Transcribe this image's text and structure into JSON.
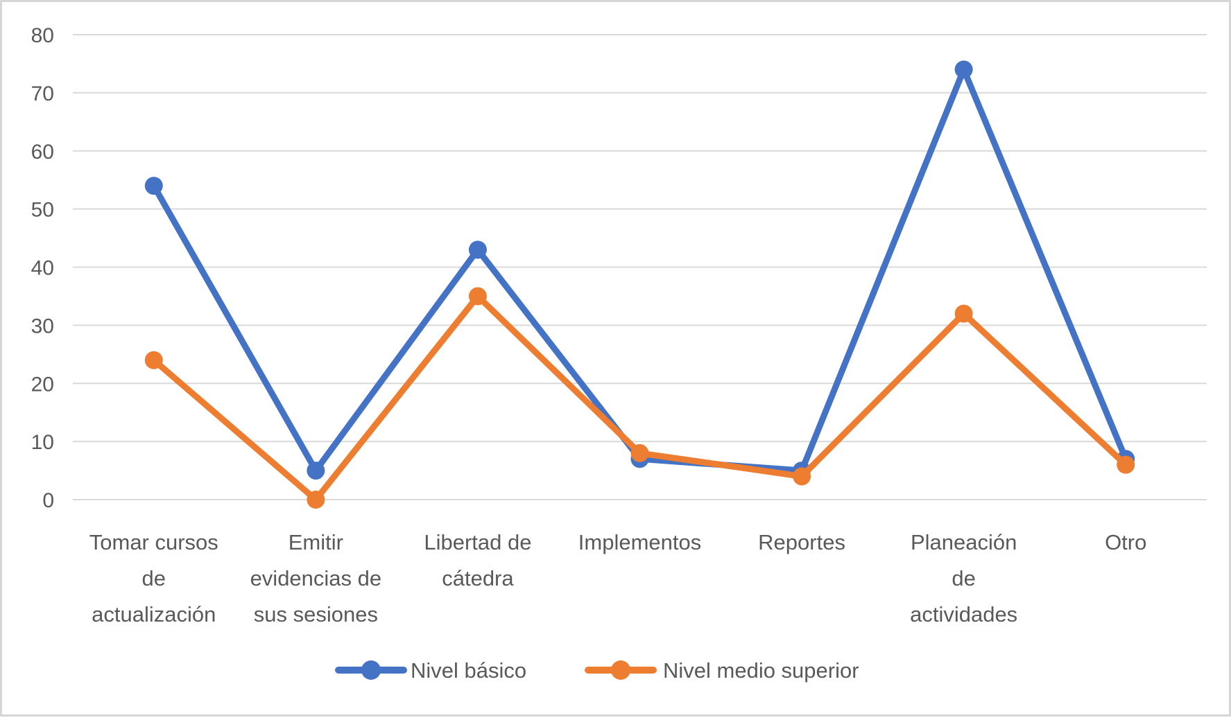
{
  "chart_data": {
    "type": "line",
    "title": "",
    "xlabel": "",
    "ylabel": "",
    "categories": [
      "Tomar cursos de actualización",
      "Emitir evidencias de sus sesiones",
      "Libertad de cátedra",
      "Implementos",
      "Reportes",
      "Planeación de actividades",
      "Otro"
    ],
    "category_lines": [
      [
        "Tomar cursos",
        "de",
        "actualización"
      ],
      [
        "Emitir",
        "evidencias de",
        "sus sesiones"
      ],
      [
        "Libertad de",
        "cátedra"
      ],
      [
        "Implementos"
      ],
      [
        "Reportes"
      ],
      [
        "Planeación",
        "de",
        "actividades"
      ],
      [
        "Otro"
      ]
    ],
    "series": [
      {
        "name": "Nivel básico",
        "color": "#4472C4",
        "values": [
          54,
          5,
          43,
          7,
          5,
          74,
          7
        ]
      },
      {
        "name": "Nivel medio superior",
        "color": "#ED7D31",
        "values": [
          24,
          0,
          35,
          8,
          4,
          32,
          6
        ]
      }
    ],
    "ylim": [
      0,
      80
    ],
    "ytick_step": 10,
    "ytick_labels": [
      "0",
      "10",
      "20",
      "30",
      "40",
      "50",
      "60",
      "70",
      "80"
    ],
    "grid": true,
    "legend_position": "bottom",
    "colors": {
      "grid_line": "#D9D9D9",
      "axis_text": "#595959",
      "frame_border": "#D6D6D6",
      "background": "#FFFFFF"
    }
  }
}
